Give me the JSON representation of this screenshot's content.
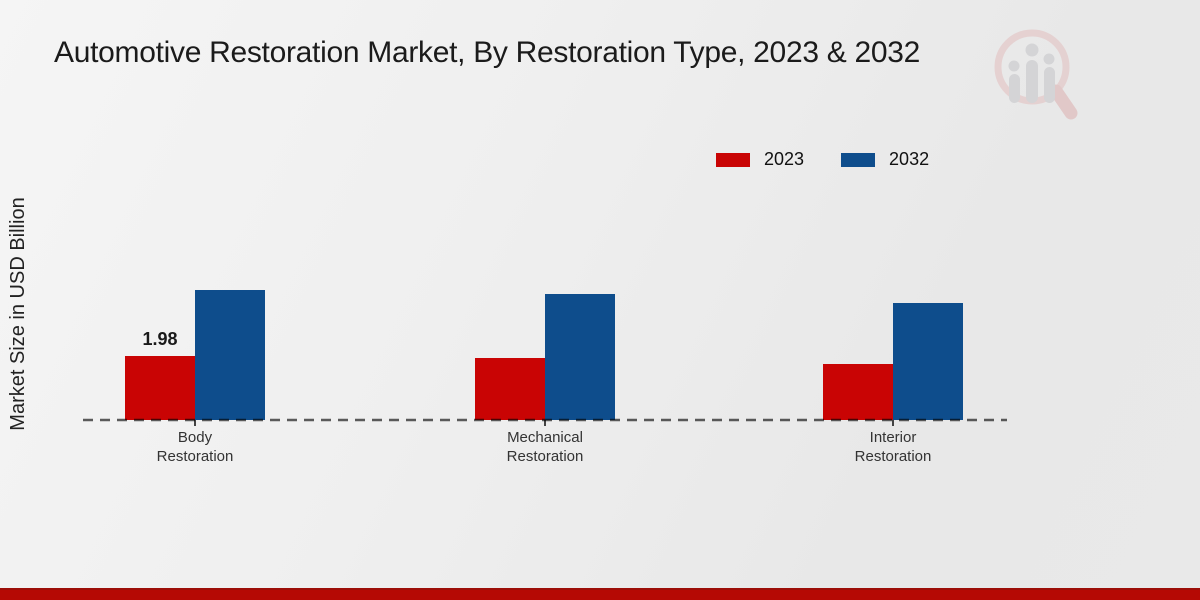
{
  "icons": {
    "watermark": "magnifier-bar-chart-logo"
  },
  "colors": {
    "series_2023": "#c90404",
    "series_2032": "#0e4d8c",
    "footer_bar": "#b50904",
    "baseline": "#5f5f5f",
    "title_text": "#1b1b1b"
  },
  "chart_data": {
    "type": "bar",
    "title": "Automotive Restoration Market, By Restoration Type, 2023 & 2032",
    "ylabel": "Market Size in USD Billion",
    "xlabel": "",
    "grid": false,
    "y_axis_visible": false,
    "baseline_style": "dashed",
    "legend_position": "top-right",
    "categories": [
      {
        "line1": "Body",
        "line2": "Restoration"
      },
      {
        "line1": "Mechanical",
        "line2": "Restoration"
      },
      {
        "line1": "Interior",
        "line2": "Restoration"
      }
    ],
    "series": [
      {
        "name": "2023",
        "color": "#c90404",
        "values": [
          1.98,
          1.92,
          1.73
        ]
      },
      {
        "name": "2032",
        "color": "#0e4d8c",
        "values": [
          4.02,
          3.9,
          3.62
        ]
      }
    ],
    "annotations": [
      {
        "series_index": 0,
        "category_index": 0,
        "text": "1.98"
      }
    ]
  }
}
